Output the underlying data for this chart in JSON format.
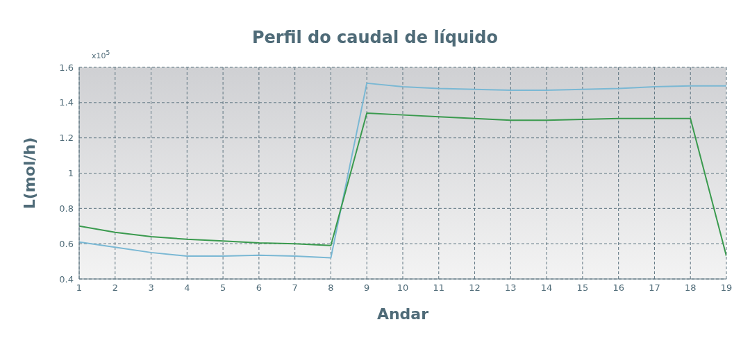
{
  "chart_data": {
    "type": "line",
    "title": "Perfil do caudal de líquido",
    "xlabel": "Andar",
    "ylabel": "L(mol/h)",
    "annotations": [
      "x10$^{5}$"
    ],
    "x": [
      1,
      2,
      3,
      4,
      5,
      6,
      7,
      8,
      9,
      10,
      11,
      12,
      13,
      14,
      15,
      16,
      17,
      18,
      19
    ],
    "series": [
      {
        "color": "#7ab8d4",
        "values": [
          0.61,
          0.58,
          0.55,
          0.53,
          0.53,
          0.535,
          0.53,
          0.52,
          1.51,
          1.49,
          1.48,
          1.475,
          1.47,
          1.47,
          1.475,
          1.48,
          1.49,
          1.495,
          1.495
        ]
      },
      {
        "color": "#3a9a4e",
        "values": [
          0.7,
          0.665,
          0.64,
          0.625,
          0.615,
          0.605,
          0.6,
          0.59,
          1.34,
          1.33,
          1.32,
          1.31,
          1.3,
          1.3,
          1.305,
          1.31,
          1.31,
          1.31,
          0.53
        ]
      }
    ],
    "xlim": [
      1,
      19
    ],
    "xticks": [
      1,
      2,
      3,
      4,
      5,
      6,
      7,
      8,
      9,
      10,
      11,
      12,
      13,
      14,
      15,
      16,
      17,
      18,
      19
    ],
    "ylim": [
      0.4,
      1.6
    ],
    "yticks": [
      0.4,
      0.6,
      0.8,
      1,
      1.2,
      1.4,
      1.6
    ],
    "grid": true,
    "legend": false,
    "marker": "none",
    "line_style": "solid"
  }
}
